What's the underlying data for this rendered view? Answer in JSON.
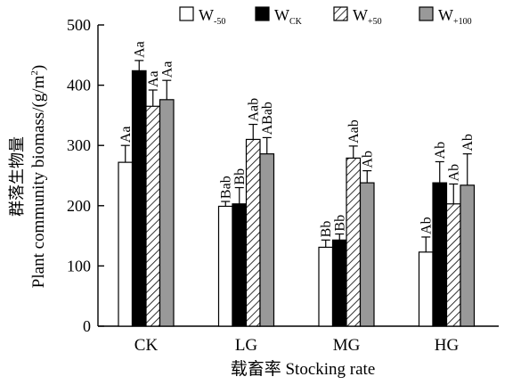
{
  "chart_data": {
    "type": "bar",
    "xlabel": "载畜率 Stocking rate",
    "ylabel_cn": "群落生物量",
    "ylabel_en": "Plant community biomass/(g/m",
    "ylabel_sup": "2",
    "ylabel_close": ")",
    "ylim": [
      0,
      500
    ],
    "yticks": [
      0,
      100,
      200,
      300,
      400,
      500
    ],
    "categories": [
      "CK",
      "LG",
      "MG",
      "HG"
    ],
    "legend_position": "top",
    "series": [
      {
        "name": "W",
        "sub": "-50",
        "pattern": "open",
        "values": [
          272,
          199,
          131,
          123
        ],
        "errors": [
          28,
          8,
          12,
          25
        ],
        "labels": [
          "Aa",
          "Bab",
          "Bb",
          "Ab"
        ]
      },
      {
        "name": "W",
        "sub": "CK",
        "pattern": "solid",
        "values": [
          424,
          203,
          143,
          238
        ],
        "errors": [
          17,
          27,
          10,
          35
        ],
        "labels": [
          "Aa",
          "Bb",
          "Bb",
          "Ab"
        ]
      },
      {
        "name": "W",
        "sub": "+50",
        "pattern": "hatch",
        "values": [
          365,
          310,
          279,
          203
        ],
        "errors": [
          27,
          25,
          20,
          33
        ],
        "labels": [
          "Aa",
          "Aab",
          "Aab",
          "Ab"
        ]
      },
      {
        "name": "W",
        "sub": "+100",
        "pattern": "gray",
        "values": [
          376,
          286,
          238,
          234
        ],
        "errors": [
          32,
          27,
          20,
          52
        ],
        "labels": [
          "Aa",
          "ABab",
          "Ab",
          "Ab"
        ]
      }
    ]
  }
}
